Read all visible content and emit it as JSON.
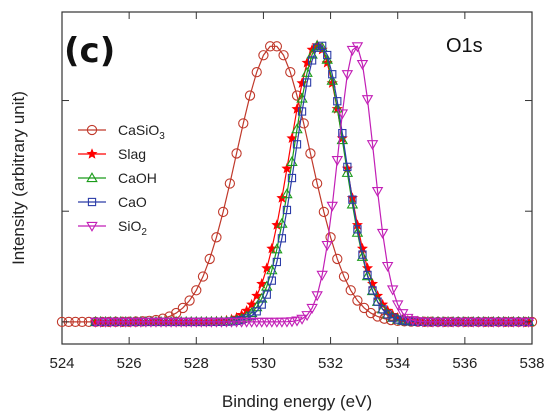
{
  "chart_data": {
    "type": "scatter",
    "panel_label": "(c)",
    "annotation": "O1s",
    "xlabel": "Binding energy (eV)",
    "ylabel": "Intensity (arbitrary unit)",
    "xlim": [
      524,
      538
    ],
    "ylim": [
      -0.08,
      1.12
    ],
    "x_ticks": [
      "524",
      "526",
      "528",
      "530",
      "532",
      "534",
      "536",
      "538"
    ],
    "y_ticks_labeled": false,
    "grid": false,
    "legend_position": "left",
    "series": [
      {
        "name": "CaSiO3",
        "label_main": "CaSiO",
        "label_sub": "3",
        "marker": "circle",
        "color": "#c0392b",
        "center": 530.3,
        "fwhm": 2.6,
        "x_start": 524.0,
        "x_end": 538.0,
        "step": 0.2
      },
      {
        "name": "Slag",
        "label_main": "Slag",
        "label_sub": "",
        "marker": "star",
        "color": "#ff0000",
        "center": 531.6,
        "fwhm": 1.95,
        "x_start": 525.0,
        "x_end": 538.0,
        "step": 0.15
      },
      {
        "name": "CaOH",
        "label_main": "CaOH",
        "label_sub": "",
        "marker": "triangle-up",
        "color": "#1a9b1a",
        "center": 531.65,
        "fwhm": 1.8,
        "x_start": 525.0,
        "x_end": 538.0,
        "step": 0.15
      },
      {
        "name": "CaO",
        "label_main": "CaO",
        "label_sub": "",
        "marker": "square",
        "color": "#2c3ca8",
        "center": 531.7,
        "fwhm": 1.75,
        "x_start": 525.0,
        "x_end": 538.0,
        "step": 0.15
      },
      {
        "name": "SiO2",
        "label_main": "SiO",
        "label_sub": "2",
        "marker": "triangle-down",
        "color": "#c21fb6",
        "center": 532.75,
        "fwhm": 1.25,
        "x_start": 525.0,
        "x_end": 538.0,
        "step": 0.15
      }
    ]
  }
}
